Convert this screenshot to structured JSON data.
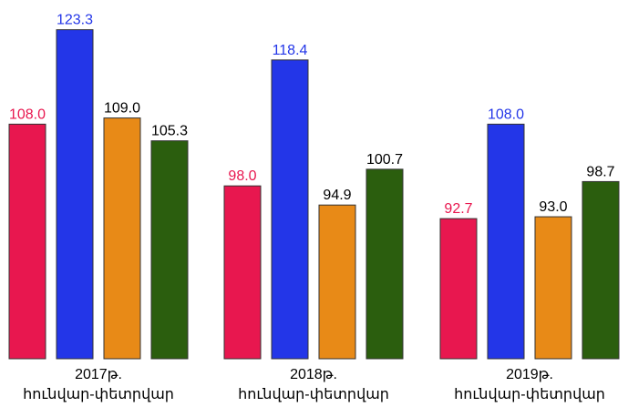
{
  "chart_data": {
    "type": "bar",
    "categories": [
      [
        "2017թ.",
        "հունվար-փետրվար"
      ],
      [
        "2018թ.",
        "հունվար-փետրվար"
      ],
      [
        "2019թ.",
        "հունվար-փետրվար"
      ]
    ],
    "series": [
      {
        "values": [
          108.0,
          98.0,
          92.7
        ],
        "color": "#e8174f",
        "label_color": "#e8174f"
      },
      {
        "values": [
          123.3,
          118.4,
          108.0
        ],
        "color": "#2336e8",
        "label_color": "#2336e8"
      },
      {
        "values": [
          109.0,
          94.9,
          93.0
        ],
        "color": "#e88a17",
        "label_color": "#000000"
      },
      {
        "values": [
          105.3,
          100.7,
          98.7
        ],
        "color": "#2b5e0e",
        "label_color": "#000000"
      }
    ],
    "value_labels": [
      [
        "108.0",
        "98.0",
        "92.7"
      ],
      [
        "123.3",
        "118.4",
        "108.0"
      ],
      [
        "109.0",
        "94.9",
        "93.0"
      ],
      [
        "105.3",
        "100.7",
        "98.7"
      ]
    ],
    "ylim": [
      70,
      125
    ],
    "grid": false,
    "legend": "none",
    "title": "",
    "xlabel": "",
    "ylabel": ""
  }
}
